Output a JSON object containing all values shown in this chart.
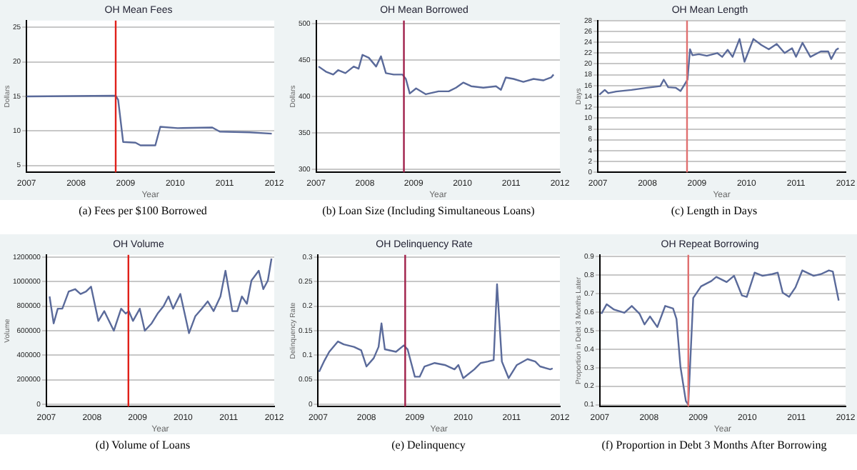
{
  "chart_data": [
    {
      "type": "line",
      "title": "OH Mean Fees",
      "xlabel": "Year",
      "ylabel": "Dollars",
      "xlim": [
        2007,
        2012
      ],
      "xticks": [
        2007,
        2008,
        2009,
        2010,
        2011,
        2012
      ],
      "ylim": [
        4,
        26
      ],
      "yticks": [
        5,
        10,
        15,
        20,
        25
      ],
      "grid": "y",
      "marker": "none",
      "annotations": [
        "(a) Fees per $100 Borrowed"
      ],
      "ref_lines": [
        {
          "axis": "x",
          "value": 2008.8,
          "color": "#e0201a"
        }
      ],
      "series": [
        {
          "color": "#5a6a9a",
          "x": [
            2007.0,
            2008.8,
            2008.85,
            2008.95,
            2009.2,
            2009.3,
            2009.6,
            2009.7,
            2010.05,
            2010.75,
            2010.9,
            2011.5,
            2011.95
          ],
          "values": [
            15,
            15.1,
            14.5,
            8.4,
            8.3,
            7.9,
            7.9,
            10.6,
            10.4,
            10.5,
            9.9,
            9.8,
            9.6
          ]
        }
      ]
    },
    {
      "type": "line",
      "title": "OH Mean Borrowed",
      "xlabel": "Year",
      "ylabel": "Dollars",
      "xlim": [
        2007,
        2012
      ],
      "xticks": [
        2007,
        2008,
        2009,
        2010,
        2011,
        2012
      ],
      "ylim": [
        296,
        504
      ],
      "yticks": [
        300,
        350,
        400,
        450,
        500
      ],
      "grid": "y",
      "marker": "none",
      "annotations": [
        "(b) Loan Size (Including Simultaneous Loans)"
      ],
      "ref_lines": [
        {
          "axis": "x",
          "value": 2008.8,
          "color": "#a0204a"
        }
      ],
      "series": [
        {
          "color": "#5a6a9a",
          "x": [
            2007.05,
            2007.2,
            2007.35,
            2007.45,
            2007.6,
            2007.77,
            2007.87,
            2007.95,
            2008.08,
            2008.23,
            2008.33,
            2008.43,
            2008.59,
            2008.77,
            2008.84,
            2008.92,
            2009.05,
            2009.25,
            2009.51,
            2009.72,
            2009.87,
            2010.02,
            2010.18,
            2010.43,
            2010.69,
            2010.79,
            2010.89,
            2011.05,
            2011.25,
            2011.46,
            2011.66,
            2011.82,
            2011.87
          ],
          "values": [
            441,
            434,
            430,
            436,
            432,
            441,
            438,
            457,
            453,
            441,
            455,
            432,
            430,
            430,
            424,
            404,
            411,
            403,
            407,
            407,
            412,
            419,
            414,
            412,
            414,
            409,
            426,
            424,
            420,
            424,
            422,
            426,
            430
          ]
        }
      ]
    },
    {
      "type": "line",
      "title": "OH Mean Length",
      "xlabel": "Year",
      "ylabel": "Days",
      "xlim": [
        2007,
        2012
      ],
      "xticks": [
        2007,
        2008,
        2009,
        2010,
        2011,
        2012
      ],
      "ylim": [
        0,
        28
      ],
      "yticks": [
        0,
        2,
        4,
        6,
        8,
        10,
        12,
        14,
        16,
        18,
        20,
        22,
        24,
        26,
        28
      ],
      "grid": "y",
      "marker": "none",
      "annotations": [
        "(c) Length in Days"
      ],
      "ref_lines": [
        {
          "axis": "x",
          "value": 2008.8,
          "color": "#e07070"
        }
      ],
      "series": [
        {
          "color": "#5a6a9a",
          "x": [
            2007.03,
            2007.14,
            2007.21,
            2007.37,
            2007.68,
            2007.99,
            2008.26,
            2008.33,
            2008.42,
            2008.57,
            2008.67,
            2008.75,
            2008.81,
            2008.86,
            2008.91,
            2009.04,
            2009.2,
            2009.41,
            2009.51,
            2009.62,
            2009.72,
            2009.86,
            2009.96,
            2010.14,
            2010.3,
            2010.45,
            2010.61,
            2010.77,
            2010.92,
            2011.0,
            2011.13,
            2011.29,
            2011.5,
            2011.65,
            2011.71,
            2011.81,
            2011.86
          ],
          "values": [
            14.3,
            15.2,
            14.6,
            14.9,
            15.2,
            15.6,
            15.9,
            17.1,
            15.7,
            15.6,
            15,
            16.2,
            17.1,
            22.7,
            21.6,
            21.8,
            21.5,
            22,
            21.3,
            22.6,
            21.3,
            24.6,
            20.4,
            24.6,
            23.5,
            22.7,
            23.7,
            22,
            22.9,
            21.3,
            23.9,
            21.3,
            22.3,
            22.3,
            20.9,
            22.6,
            22.9
          ]
        }
      ]
    },
    {
      "type": "line",
      "title": "OH Volume",
      "xlabel": "Year",
      "ylabel": "Volume",
      "xlim": [
        2007,
        2012
      ],
      "xticks": [
        2007,
        2008,
        2009,
        2010,
        2011,
        2012
      ],
      "ylim": [
        -20000,
        1220000
      ],
      "yticks": [
        0,
        200000,
        400000,
        600000,
        800000,
        1000000,
        1200000
      ],
      "grid": "y",
      "marker": "none",
      "annotations": [
        "(d) Volume of Loans"
      ],
      "ref_lines": [
        {
          "axis": "x",
          "value": 2008.8,
          "color": "#e0201a"
        }
      ],
      "series": [
        {
          "color": "#5a6a9a",
          "x": [
            2007.07,
            2007.16,
            2007.25,
            2007.35,
            2007.49,
            2007.63,
            2007.75,
            2007.87,
            2007.98,
            2008.14,
            2008.27,
            2008.48,
            2008.64,
            2008.74,
            2008.81,
            2008.9,
            2009.05,
            2009.16,
            2009.31,
            2009.44,
            2009.57,
            2009.68,
            2009.78,
            2009.94,
            2010.13,
            2010.27,
            2010.41,
            2010.54,
            2010.67,
            2010.82,
            2010.93,
            2011.08,
            2011.19,
            2011.29,
            2011.4,
            2011.5,
            2011.66,
            2011.76,
            2011.86,
            2011.94
          ],
          "values": [
            880000,
            660000,
            780000,
            780000,
            920000,
            940000,
            900000,
            920000,
            960000,
            680000,
            760000,
            600000,
            780000,
            740000,
            760000,
            680000,
            780000,
            600000,
            660000,
            740000,
            800000,
            880000,
            780000,
            900000,
            580000,
            720000,
            780000,
            840000,
            760000,
            880000,
            1090000,
            760000,
            760000,
            880000,
            820000,
            1010000,
            1090000,
            940000,
            1010000,
            1190000
          ]
        }
      ]
    },
    {
      "type": "line",
      "title": "OH Delinquency Rate",
      "xlabel": "Year",
      "ylabel": "Delinquency Rate",
      "xlim": [
        2007,
        2012
      ],
      "xticks": [
        2007,
        2008,
        2009,
        2010,
        2011,
        2012
      ],
      "ylim": [
        -0.005,
        0.305
      ],
      "yticks": [
        0,
        0.05,
        0.1,
        0.15,
        0.2,
        0.25,
        0.3
      ],
      "grid": "y",
      "marker": "none",
      "annotations": [
        "(e) Delinquency"
      ],
      "ref_lines": [
        {
          "axis": "x",
          "value": 2008.8,
          "color": "#a0204a"
        }
      ],
      "series": [
        {
          "color": "#5a6a9a",
          "x": [
            2007.02,
            2007.12,
            2007.23,
            2007.41,
            2007.53,
            2007.74,
            2007.89,
            2008.0,
            2008.15,
            2008.25,
            2008.31,
            2008.38,
            2008.61,
            2008.77,
            2008.85,
            2009.0,
            2009.1,
            2009.2,
            2009.41,
            2009.62,
            2009.82,
            2009.9,
            2010.0,
            2010.23,
            2010.36,
            2010.51,
            2010.63,
            2010.7,
            2010.8,
            2010.94,
            2011.11,
            2011.33,
            2011.49,
            2011.59,
            2011.8,
            2011.85
          ],
          "values": [
            0.066,
            0.087,
            0.107,
            0.128,
            0.122,
            0.117,
            0.11,
            0.077,
            0.094,
            0.117,
            0.165,
            0.112,
            0.107,
            0.12,
            0.112,
            0.056,
            0.056,
            0.077,
            0.084,
            0.08,
            0.071,
            0.08,
            0.053,
            0.071,
            0.084,
            0.087,
            0.09,
            0.245,
            0.087,
            0.053,
            0.08,
            0.092,
            0.087,
            0.077,
            0.071,
            0.073
          ]
        }
      ]
    },
    {
      "type": "line",
      "title": "OH Repeat Borrowing",
      "xlabel": "Year",
      "ylabel": "Proportion in Debt 3 Months Later",
      "xlim": [
        2007,
        2012
      ],
      "xticks": [
        2007,
        2008,
        2009,
        2010,
        2011,
        2012
      ],
      "ylim": [
        0.09,
        0.91
      ],
      "yticks": [
        0.1,
        0.2,
        0.3,
        0.4,
        0.5,
        0.6,
        0.7,
        0.8,
        0.9
      ],
      "grid": "y",
      "marker": "none",
      "annotations": [
        "(f) Proportion in Debt 3 Months After Borrowing"
      ],
      "ref_lines": [
        {
          "axis": "x",
          "value": 2008.8,
          "color": "#e07070"
        }
      ],
      "series": [
        {
          "color": "#5a6a9a",
          "x": [
            2007.03,
            2007.14,
            2007.29,
            2007.5,
            2007.65,
            2007.81,
            2007.91,
            2008.02,
            2008.17,
            2008.33,
            2008.49,
            2008.56,
            2008.64,
            2008.75,
            2008.8,
            2008.9,
            2009.06,
            2009.27,
            2009.37,
            2009.58,
            2009.73,
            2009.89,
            2009.99,
            2010.15,
            2010.31,
            2010.51,
            2010.62,
            2010.72,
            2010.85,
            2010.98,
            2011.12,
            2011.35,
            2011.5,
            2011.66,
            2011.74,
            2011.86
          ],
          "values": [
            0.591,
            0.643,
            0.614,
            0.597,
            0.634,
            0.591,
            0.534,
            0.577,
            0.52,
            0.634,
            0.62,
            0.563,
            0.306,
            0.12,
            0.1,
            0.677,
            0.74,
            0.769,
            0.791,
            0.763,
            0.797,
            0.691,
            0.683,
            0.814,
            0.797,
            0.806,
            0.814,
            0.706,
            0.683,
            0.734,
            0.826,
            0.797,
            0.806,
            0.826,
            0.82,
            0.663
          ]
        }
      ]
    }
  ]
}
